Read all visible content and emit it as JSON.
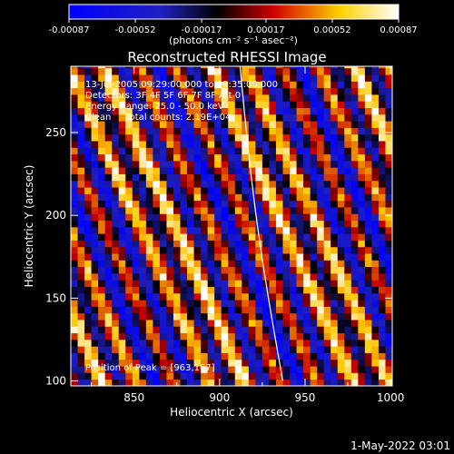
{
  "chart_data": {
    "type": "heatmap",
    "title": "Reconstructed RHESSI Image",
    "xlabel": "Heliocentric X (arcsec)",
    "ylabel": "Heliocentric Y (arcsec)",
    "xlim": [
      813,
      1001
    ],
    "ylim": [
      97,
      290
    ],
    "x_ticks": [
      850,
      900,
      950,
      1000
    ],
    "y_ticks": [
      100,
      150,
      200,
      250
    ],
    "colorbar": {
      "range": [
        -0.00087,
        0.00087
      ],
      "tick_labels": [
        "-0.00087",
        "-0.00052",
        "-0.00017",
        "0.00017",
        "0.00052",
        "0.00087"
      ],
      "units": "(photons cm⁻² s⁻¹ asec⁻²)",
      "colormap": [
        "#0000ff",
        "#000000",
        "#ff0000",
        "#ffff00",
        "#ffffff"
      ]
    },
    "pattern": {
      "description_hidden": true,
      "stripe_slope": -2.3,
      "pixel_size_arcsec": 4
    },
    "limb_line": {
      "x": [
        912,
        937
      ],
      "y": [
        290,
        100
      ],
      "color": "#ffffff"
    },
    "annotations": [
      "13-Jul-2005 09:29:00.000 to 09:35:00.000",
      "Detectors: 3F 4F 5F 6F 7F 8F  Att 0",
      "Energy Range: 25.0 - 50.0 keV",
      "Clean     Total counts: 2.19E+04",
      "Position of Peak = [963,167]"
    ],
    "footer_date": "1-May-2022 03:01"
  }
}
